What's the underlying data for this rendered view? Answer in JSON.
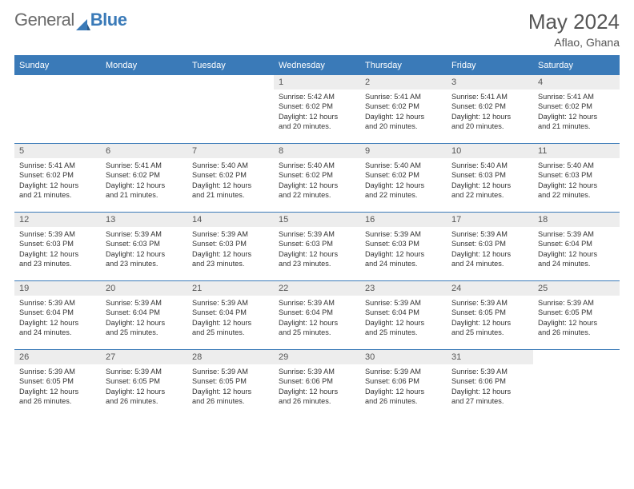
{
  "brand": {
    "part1": "General",
    "part2": "Blue"
  },
  "title": "May 2024",
  "location": "Aflao, Ghana",
  "colors": {
    "header_bg": "#3a7ab8",
    "header_text": "#ffffff",
    "daynum_bg": "#ededed",
    "text": "#333333",
    "rule": "#3a7ab8"
  },
  "weekdays": [
    "Sunday",
    "Monday",
    "Tuesday",
    "Wednesday",
    "Thursday",
    "Friday",
    "Saturday"
  ],
  "weeks": [
    [
      null,
      null,
      null,
      {
        "n": "1",
        "sr": "5:42 AM",
        "ss": "6:02 PM",
        "dl": "12 hours and 20 minutes."
      },
      {
        "n": "2",
        "sr": "5:41 AM",
        "ss": "6:02 PM",
        "dl": "12 hours and 20 minutes."
      },
      {
        "n": "3",
        "sr": "5:41 AM",
        "ss": "6:02 PM",
        "dl": "12 hours and 20 minutes."
      },
      {
        "n": "4",
        "sr": "5:41 AM",
        "ss": "6:02 PM",
        "dl": "12 hours and 21 minutes."
      }
    ],
    [
      {
        "n": "5",
        "sr": "5:41 AM",
        "ss": "6:02 PM",
        "dl": "12 hours and 21 minutes."
      },
      {
        "n": "6",
        "sr": "5:41 AM",
        "ss": "6:02 PM",
        "dl": "12 hours and 21 minutes."
      },
      {
        "n": "7",
        "sr": "5:40 AM",
        "ss": "6:02 PM",
        "dl": "12 hours and 21 minutes."
      },
      {
        "n": "8",
        "sr": "5:40 AM",
        "ss": "6:02 PM",
        "dl": "12 hours and 22 minutes."
      },
      {
        "n": "9",
        "sr": "5:40 AM",
        "ss": "6:02 PM",
        "dl": "12 hours and 22 minutes."
      },
      {
        "n": "10",
        "sr": "5:40 AM",
        "ss": "6:03 PM",
        "dl": "12 hours and 22 minutes."
      },
      {
        "n": "11",
        "sr": "5:40 AM",
        "ss": "6:03 PM",
        "dl": "12 hours and 22 minutes."
      }
    ],
    [
      {
        "n": "12",
        "sr": "5:39 AM",
        "ss": "6:03 PM",
        "dl": "12 hours and 23 minutes."
      },
      {
        "n": "13",
        "sr": "5:39 AM",
        "ss": "6:03 PM",
        "dl": "12 hours and 23 minutes."
      },
      {
        "n": "14",
        "sr": "5:39 AM",
        "ss": "6:03 PM",
        "dl": "12 hours and 23 minutes."
      },
      {
        "n": "15",
        "sr": "5:39 AM",
        "ss": "6:03 PM",
        "dl": "12 hours and 23 minutes."
      },
      {
        "n": "16",
        "sr": "5:39 AM",
        "ss": "6:03 PM",
        "dl": "12 hours and 24 minutes."
      },
      {
        "n": "17",
        "sr": "5:39 AM",
        "ss": "6:03 PM",
        "dl": "12 hours and 24 minutes."
      },
      {
        "n": "18",
        "sr": "5:39 AM",
        "ss": "6:04 PM",
        "dl": "12 hours and 24 minutes."
      }
    ],
    [
      {
        "n": "19",
        "sr": "5:39 AM",
        "ss": "6:04 PM",
        "dl": "12 hours and 24 minutes."
      },
      {
        "n": "20",
        "sr": "5:39 AM",
        "ss": "6:04 PM",
        "dl": "12 hours and 25 minutes."
      },
      {
        "n": "21",
        "sr": "5:39 AM",
        "ss": "6:04 PM",
        "dl": "12 hours and 25 minutes."
      },
      {
        "n": "22",
        "sr": "5:39 AM",
        "ss": "6:04 PM",
        "dl": "12 hours and 25 minutes."
      },
      {
        "n": "23",
        "sr": "5:39 AM",
        "ss": "6:04 PM",
        "dl": "12 hours and 25 minutes."
      },
      {
        "n": "24",
        "sr": "5:39 AM",
        "ss": "6:05 PM",
        "dl": "12 hours and 25 minutes."
      },
      {
        "n": "25",
        "sr": "5:39 AM",
        "ss": "6:05 PM",
        "dl": "12 hours and 26 minutes."
      }
    ],
    [
      {
        "n": "26",
        "sr": "5:39 AM",
        "ss": "6:05 PM",
        "dl": "12 hours and 26 minutes."
      },
      {
        "n": "27",
        "sr": "5:39 AM",
        "ss": "6:05 PM",
        "dl": "12 hours and 26 minutes."
      },
      {
        "n": "28",
        "sr": "5:39 AM",
        "ss": "6:05 PM",
        "dl": "12 hours and 26 minutes."
      },
      {
        "n": "29",
        "sr": "5:39 AM",
        "ss": "6:06 PM",
        "dl": "12 hours and 26 minutes."
      },
      {
        "n": "30",
        "sr": "5:39 AM",
        "ss": "6:06 PM",
        "dl": "12 hours and 26 minutes."
      },
      {
        "n": "31",
        "sr": "5:39 AM",
        "ss": "6:06 PM",
        "dl": "12 hours and 27 minutes."
      },
      null
    ]
  ],
  "labels": {
    "sunrise": "Sunrise: ",
    "sunset": "Sunset: ",
    "daylight": "Daylight: "
  }
}
